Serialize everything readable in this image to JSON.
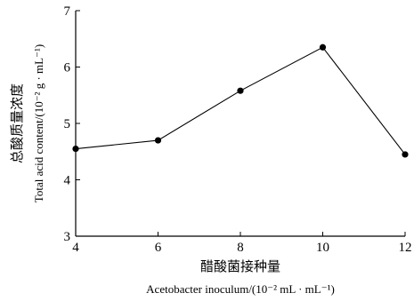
{
  "chart_data": {
    "type": "line",
    "x": [
      4,
      6,
      8,
      10,
      12
    ],
    "series": [
      {
        "values": [
          4.55,
          4.7,
          5.58,
          6.35,
          4.45
        ]
      }
    ],
    "xlim": [
      4,
      12
    ],
    "ylim": [
      3,
      7
    ],
    "xticks": [
      "4",
      "6",
      "8",
      "10",
      "12"
    ],
    "yticks": [
      "3",
      "4",
      "5",
      "6",
      "7"
    ],
    "xlabel_cn": "醋酸菌接种量",
    "xlabel_en": "Acetobacter inoculum/(10⁻² mL · mL⁻¹)",
    "ylabel_cn": "总酸质量浓度",
    "ylabel_en": "Total acid content/(10⁻² g · mL⁻¹)",
    "grid": false,
    "colors": {
      "line": "#000000",
      "marker": "#000000"
    }
  }
}
